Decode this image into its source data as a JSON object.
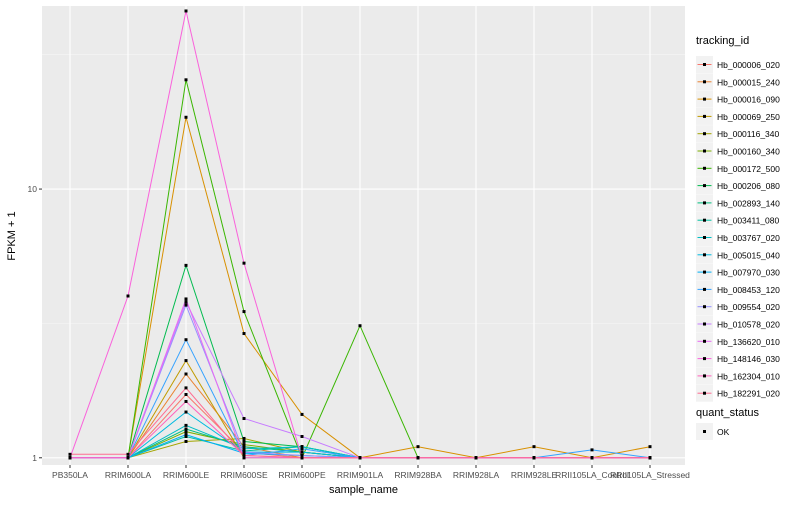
{
  "chart_data": {
    "type": "line",
    "xlabel": "sample_name",
    "ylabel": "FPKM + 1",
    "y_scale": "log10",
    "ylim": [
      0.94,
      48
    ],
    "y_ticks": [
      1,
      10
    ],
    "y_tick_labels": [
      "1",
      "10"
    ],
    "grid": true,
    "legend_position": "right",
    "categories": [
      "PB350LA",
      "RRIM600LA",
      "RRIM600LE",
      "RRIM600SE",
      "RRIM600PE",
      "RRIM901LA",
      "RRIM928BA",
      "RRIM928LA",
      "RRIM928LE",
      "RRII105LA_Control",
      "RRII105LA_Stressed"
    ],
    "legend_title": "tracking_id",
    "series": [
      {
        "name": "Hb_000006_020",
        "color": "#F8766D",
        "values": [
          1,
          1,
          1.72,
          1.05,
          1,
          1,
          1,
          1,
          1,
          1,
          1
        ]
      },
      {
        "name": "Hb_000015_240",
        "color": "#EA8331",
        "values": [
          1,
          1,
          2.05,
          1.1,
          1,
          1,
          1,
          1,
          1,
          1,
          1
        ]
      },
      {
        "name": "Hb_000016_090",
        "color": "#D89000",
        "values": [
          1,
          1,
          18.5,
          2.9,
          1.45,
          1,
          1.1,
          1,
          1.1,
          1,
          1.1
        ]
      },
      {
        "name": "Hb_000069_250",
        "color": "#C09B00",
        "values": [
          1,
          1,
          2.3,
          1.0,
          1,
          1,
          1,
          1,
          1,
          1,
          1
        ]
      },
      {
        "name": "Hb_000116_340",
        "color": "#A3A500",
        "values": [
          1,
          1,
          1.15,
          1.18,
          1.05,
          1,
          1,
          1,
          1,
          1,
          1
        ]
      },
      {
        "name": "Hb_000160_340",
        "color": "#7CAE00",
        "values": [
          1,
          1,
          1.25,
          1.12,
          1.05,
          1,
          1,
          1,
          1,
          1,
          1
        ]
      },
      {
        "name": "Hb_000172_500",
        "color": "#39B600",
        "values": [
          1,
          1,
          25.5,
          3.5,
          1,
          3.1,
          1,
          1,
          1,
          1,
          1
        ]
      },
      {
        "name": "Hb_000206_080",
        "color": "#00BB4E",
        "values": [
          1,
          1,
          5.2,
          1.15,
          1.1,
          1,
          1,
          1,
          1,
          1,
          1
        ]
      },
      {
        "name": "Hb_002893_140",
        "color": "#00BF7D",
        "values": [
          1,
          1,
          1.28,
          1.1,
          1.05,
          1,
          1,
          1,
          1,
          1,
          1
        ]
      },
      {
        "name": "Hb_003411_080",
        "color": "#00C1A3",
        "values": [
          1,
          1,
          1.2,
          1.06,
          1.1,
          1,
          1,
          1,
          1,
          1,
          1
        ]
      },
      {
        "name": "Hb_003767_020",
        "color": "#00BFC4",
        "values": [
          1,
          1,
          1.32,
          1.08,
          1.1,
          1,
          1,
          1,
          1,
          1,
          1
        ]
      },
      {
        "name": "Hb_005015_040",
        "color": "#00BAE0",
        "values": [
          1,
          1,
          1.48,
          1.05,
          1.05,
          1,
          1,
          1,
          1,
          1,
          1
        ]
      },
      {
        "name": "Hb_007970_030",
        "color": "#00B0F6",
        "values": [
          1,
          1,
          1.22,
          1.04,
          1.02,
          1,
          1,
          1,
          1,
          1,
          1
        ]
      },
      {
        "name": "Hb_008453_120",
        "color": "#35A2FF",
        "values": [
          1,
          1,
          2.75,
          1.02,
          1.08,
          1,
          1,
          1,
          1,
          1.07,
          1
        ]
      },
      {
        "name": "Hb_009554_020",
        "color": "#9590FF",
        "values": [
          1,
          1,
          3.7,
          1.05,
          1.02,
          1,
          1,
          1,
          1,
          1,
          1
        ]
      },
      {
        "name": "Hb_010578_020",
        "color": "#C77CFF",
        "values": [
          1,
          1,
          3.8,
          1.4,
          1.2,
          1,
          1,
          1,
          1,
          1,
          1
        ]
      },
      {
        "name": "Hb_136620_010",
        "color": "#E76BF3",
        "values": [
          1,
          1,
          3.9,
          1.0,
          1,
          1,
          1,
          1,
          1,
          1,
          1
        ]
      },
      {
        "name": "Hb_148146_030",
        "color": "#FA62DB",
        "values": [
          1,
          4.0,
          46,
          5.3,
          1,
          1,
          1,
          1,
          1,
          1,
          1
        ]
      },
      {
        "name": "Hb_162304_010",
        "color": "#FF62BC",
        "values": [
          1,
          1,
          1.62,
          1.02,
          1,
          1,
          1,
          1,
          1,
          1,
          1
        ]
      },
      {
        "name": "Hb_182291_020",
        "color": "#FF6C91",
        "values": [
          1.03,
          1.03,
          1.82,
          1.02,
          1,
          1,
          1,
          1,
          1,
          1,
          1
        ]
      }
    ],
    "shape_legend": {
      "title": "quant_status",
      "items": [
        {
          "label": "OK",
          "symbol": "square"
        }
      ]
    }
  },
  "colors": {
    "panel_bg": "#EBEBEB",
    "grid_major": "#FFFFFF",
    "point": "#000000"
  }
}
